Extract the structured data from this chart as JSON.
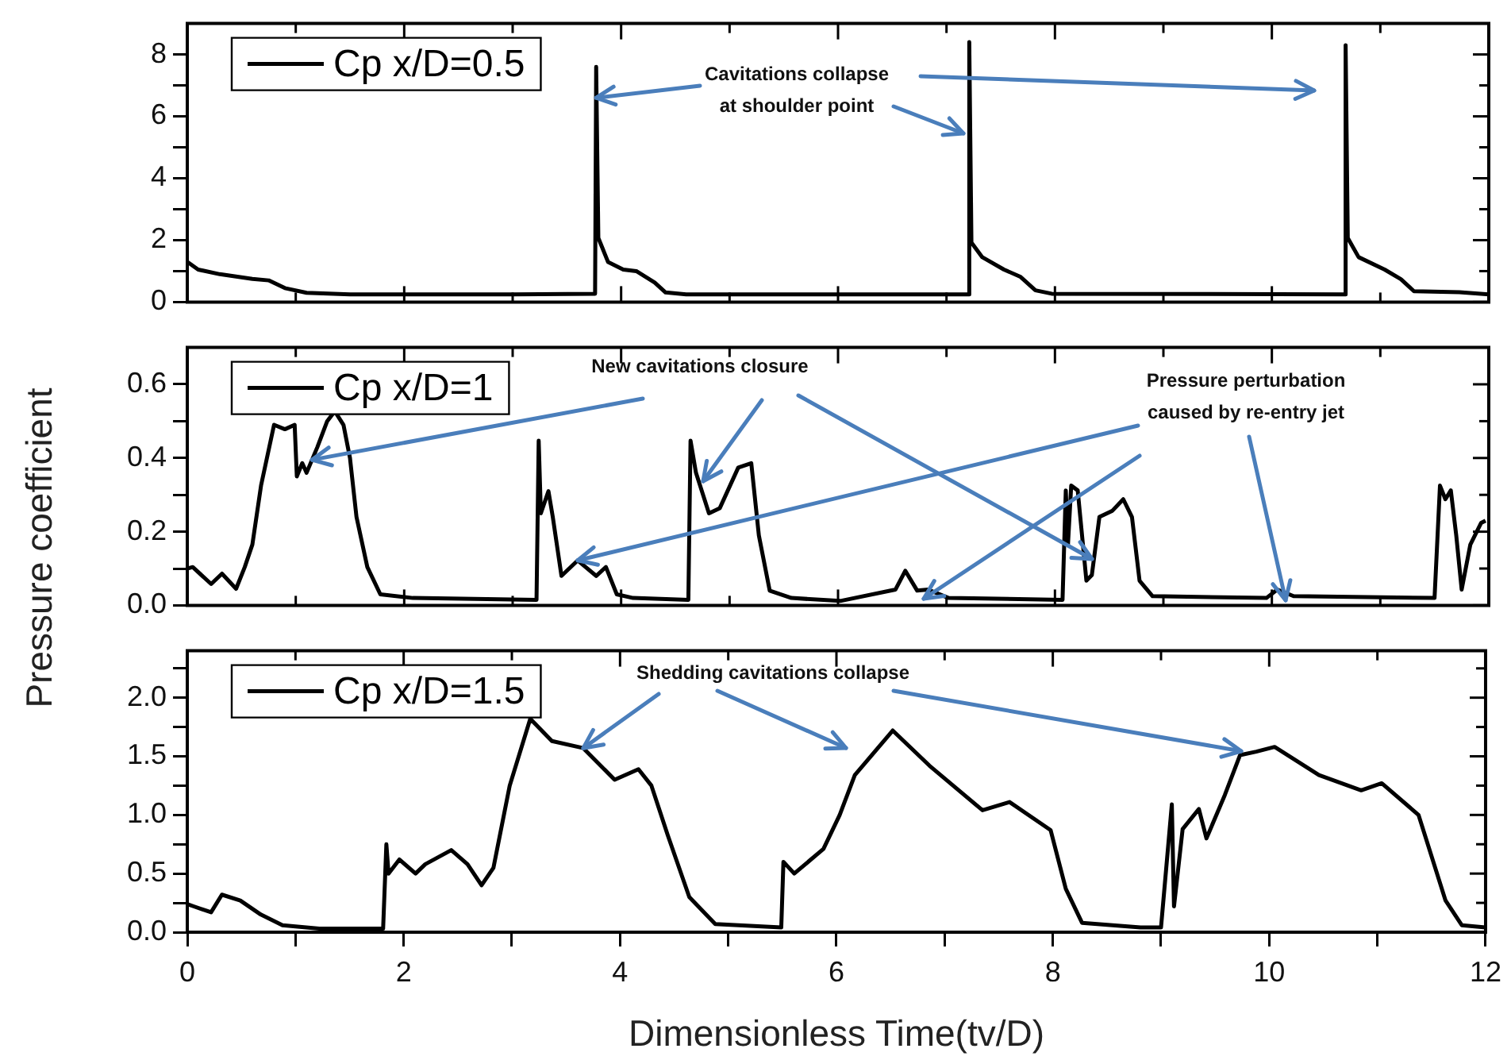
{
  "chart_data": [
    {
      "type": "line",
      "legend": "top left",
      "tick_labels": "y",
      "xlim": [
        0,
        12
      ],
      "xticks": [
        0,
        {
          "value": 1,
          "label": null
        },
        2,
        {
          "value": 3,
          "label": null
        },
        4,
        {
          "value": 5,
          "label": null
        },
        6,
        {
          "value": 7,
          "label": null
        },
        8,
        {
          "value": 9,
          "label": null
        },
        10,
        {
          "value": 11,
          "label": null
        },
        12
      ],
      "ylim": [
        0,
        9
      ],
      "yticks": [
        0,
        {
          "value": 1,
          "label": null
        },
        2,
        {
          "value": 3,
          "label": null
        },
        4,
        {
          "value": 5,
          "label": null
        },
        6,
        {
          "value": 7,
          "label": null
        },
        8
      ],
      "annotations": [
        {
          "text": "Cavitations collapse at shoulder point",
          "x": 3.77,
          "y": 6.6
        }
      ],
      "x": [
        0,
        0.1,
        0.3,
        0.6,
        0.75,
        0.9,
        1.1,
        1.5,
        3.0,
        3.76,
        3.77,
        3.79,
        3.88,
        4.02,
        4.14,
        4.31,
        4.41,
        4.6,
        7.2,
        7.21,
        7.23,
        7.33,
        7.53,
        7.68,
        7.82,
        7.97,
        10.67,
        10.68,
        10.7,
        10.8,
        11.04,
        11.19,
        11.31,
        11.73,
        12
      ],
      "series": [
        {
          "name": "Cp x/D=0.5",
          "color": "#000000",
          "values": [
            1.3,
            1.05,
            0.9,
            0.75,
            0.7,
            0.45,
            0.3,
            0.25,
            0.25,
            0.27,
            7.6,
            2.07,
            1.29,
            1.05,
            1.0,
            0.63,
            0.31,
            0.25,
            0.25,
            8.4,
            1.92,
            1.45,
            1.05,
            0.82,
            0.38,
            0.27,
            0.25,
            8.3,
            2.07,
            1.45,
            1.05,
            0.74,
            0.35,
            0.32,
            0.25
          ]
        }
      ]
    },
    {
      "type": "line",
      "legend": "top left",
      "tick_labels": "y",
      "ylabel": "Pressure coefficient",
      "xlim": [
        0,
        12
      ],
      "xticks": [
        0,
        {
          "value": 1,
          "label": null
        },
        2,
        {
          "value": 3,
          "label": null
        },
        4,
        {
          "value": 5,
          "label": null
        },
        6,
        {
          "value": 7,
          "label": null
        },
        8,
        {
          "value": 9,
          "label": null
        },
        10,
        {
          "value": 11,
          "label": null
        },
        12
      ],
      "ylim": [
        0,
        0.7
      ],
      "yticks": [
        {
          "value": 0,
          "label": "0.0"
        },
        {
          "value": 0.1,
          "label": null
        },
        0.2,
        {
          "value": 0.3,
          "label": null
        },
        0.4,
        {
          "value": 0.5,
          "label": null
        },
        0.6
      ],
      "annotations": [
        {
          "text": "New cavitations closure",
          "x": 1.15,
          "y": 0.395
        },
        {
          "text": "Pressure perturbation caused by re-entry jet",
          "x": 3.6,
          "y": 0.122
        }
      ],
      "x": [
        0,
        0.05,
        0.22,
        0.32,
        0.45,
        0.53,
        0.6,
        0.68,
        0.8,
        0.9,
        0.99,
        1.01,
        1.06,
        1.1,
        1.2,
        1.29,
        1.36,
        1.44,
        1.5,
        1.56,
        1.66,
        1.78,
        2.08,
        3.22,
        3.24,
        3.26,
        3.33,
        3.37,
        3.45,
        3.6,
        3.77,
        3.86,
        3.96,
        4.11,
        4.62,
        4.64,
        4.69,
        4.81,
        4.91,
        5.08,
        5.2,
        5.27,
        5.37,
        5.57,
        6.02,
        6.53,
        6.62,
        6.73,
        6.83,
        7.02,
        8.07,
        8.1,
        8.12,
        8.15,
        8.21,
        8.29,
        8.34,
        8.41,
        8.53,
        8.63,
        8.71,
        8.78,
        8.9,
        9.95,
        10.05,
        10.2,
        11.5,
        11.55,
        11.6,
        11.65,
        11.7,
        11.75,
        11.83,
        11.93,
        11.97
      ],
      "series": [
        {
          "name": "Cp x/D=1",
          "color": "#000000",
          "values": [
            0.1,
            0.104,
            0.058,
            0.086,
            0.045,
            0.104,
            0.165,
            0.325,
            0.49,
            0.478,
            0.49,
            0.35,
            0.386,
            0.36,
            0.43,
            0.5,
            0.527,
            0.49,
            0.4,
            0.24,
            0.104,
            0.03,
            0.02,
            0.015,
            0.447,
            0.25,
            0.31,
            0.24,
            0.08,
            0.122,
            0.08,
            0.104,
            0.03,
            0.02,
            0.015,
            0.447,
            0.36,
            0.25,
            0.264,
            0.374,
            0.386,
            0.19,
            0.04,
            0.02,
            0.012,
            0.043,
            0.094,
            0.04,
            0.043,
            0.02,
            0.015,
            0.312,
            0.165,
            0.325,
            0.312,
            0.067,
            0.082,
            0.24,
            0.257,
            0.288,
            0.24,
            0.067,
            0.025,
            0.02,
            0.043,
            0.025,
            0.02,
            0.325,
            0.288,
            0.312,
            0.19,
            0.043,
            0.165,
            0.224,
            0.23
          ]
        }
      ]
    },
    {
      "type": "line",
      "legend": "top left",
      "xlabel": "Dimensionless Time(tv/D)",
      "xlim": [
        0,
        12
      ],
      "xticks": [
        0,
        {
          "value": 1,
          "label": null
        },
        2,
        {
          "value": 3,
          "label": null
        },
        4,
        {
          "value": 5,
          "label": null
        },
        6,
        {
          "value": 7,
          "label": null
        },
        8,
        {
          "value": 9,
          "label": null
        },
        10,
        {
          "value": 11,
          "label": null
        },
        12
      ],
      "ylim": [
        0,
        2.4
      ],
      "yticks": [
        {
          "value": 0,
          "label": "0.0"
        },
        {
          "value": 0.25,
          "label": null
        },
        {
          "value": 0.5,
          "label": "0.5"
        },
        {
          "value": 0.75,
          "label": null
        },
        {
          "value": 1,
          "label": "1.0"
        },
        {
          "value": 1.25,
          "label": null
        },
        {
          "value": 1.5,
          "label": "1.5"
        },
        {
          "value": 1.75,
          "label": null
        },
        {
          "value": 2,
          "label": "2.0"
        },
        {
          "value": 2.25,
          "label": null
        }
      ],
      "annotations": [
        {
          "text": "Shedding cavitations collapse",
          "x": 3.66,
          "y": 1.57
        }
      ],
      "x": [
        0,
        0.06,
        0.22,
        0.32,
        0.49,
        0.68,
        0.88,
        1.22,
        1.81,
        1.84,
        1.86,
        1.96,
        2.11,
        2.2,
        2.44,
        2.59,
        2.72,
        2.83,
        2.98,
        3.17,
        3.37,
        3.66,
        3.95,
        4.17,
        4.29,
        4.44,
        4.64,
        4.88,
        5.49,
        5.51,
        5.61,
        5.88,
        6.03,
        6.17,
        6.52,
        6.86,
        7.35,
        7.6,
        7.98,
        8.12,
        8.27,
        8.81,
        9.0,
        9.1,
        9.12,
        9.2,
        9.35,
        9.42,
        9.59,
        9.73,
        9.88,
        10.05,
        10.46,
        10.85,
        11.04,
        11.38,
        11.63,
        11.78,
        12
      ],
      "series": [
        {
          "name": "Cp x/D=1.5",
          "color": "#000000",
          "values": [
            0.24,
            0.22,
            0.17,
            0.32,
            0.27,
            0.15,
            0.06,
            0.03,
            0.03,
            0.75,
            0.5,
            0.62,
            0.5,
            0.58,
            0.7,
            0.58,
            0.4,
            0.55,
            1.25,
            1.82,
            1.63,
            1.57,
            1.3,
            1.39,
            1.25,
            0.83,
            0.3,
            0.07,
            0.04,
            0.6,
            0.5,
            0.71,
            1.0,
            1.34,
            1.72,
            1.42,
            1.04,
            1.11,
            0.87,
            0.37,
            0.08,
            0.04,
            0.04,
            1.09,
            0.22,
            0.88,
            1.05,
            0.8,
            1.17,
            1.51,
            1.54,
            1.58,
            1.34,
            1.21,
            1.27,
            1.0,
            0.27,
            0.06,
            0.04
          ]
        }
      ]
    }
  ]
}
